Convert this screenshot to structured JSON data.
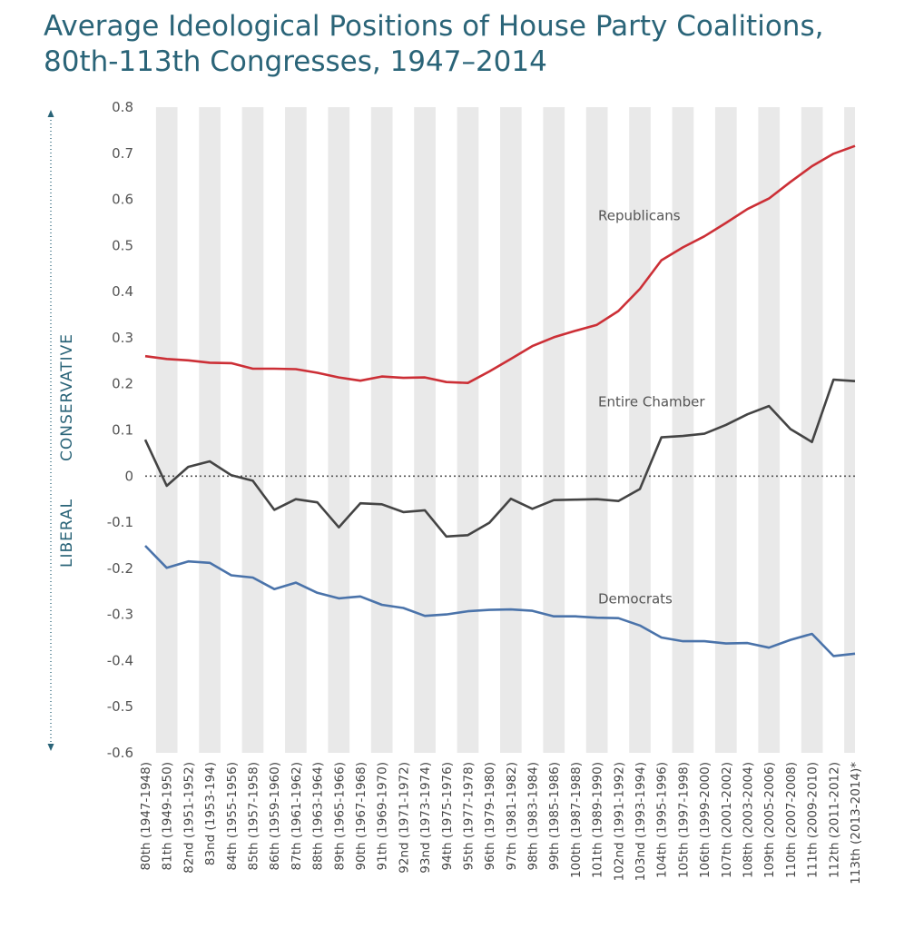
{
  "title": {
    "line1": "Average Ideological Positions of House Party Coalitions,",
    "line2": "80th-113th Congresses, 1947–2014"
  },
  "direction_labels": {
    "conservative": "CONSERVATIVE",
    "liberal": "LIBERAL"
  },
  "colors": {
    "republicans": "#cc2f36",
    "chamber": "#444444",
    "democrats": "#4a73aa",
    "title": "#2a6478",
    "band": "#e9e9e9"
  },
  "chart_data": {
    "type": "line",
    "title": "Average Ideological Positions of House Party Coalitions, 80th-113th Congresses, 1947–2014",
    "xlabel": "",
    "ylabel": "",
    "ylim": [
      -0.6,
      0.8
    ],
    "yticks": [
      "0.8",
      "0.7",
      "0.6",
      "0.5",
      "0.4",
      "0.3",
      "0.2",
      "0.1",
      "0",
      "-0.1",
      "-0.2",
      "-0.3",
      "-0.4",
      "-0.5",
      "-0.6"
    ],
    "grid": "alternating vertical bands, dotted zero line",
    "legend": "inline labels",
    "categories": [
      "80th (1947-1948)",
      "81th (1949-1950)",
      "82nd (1951-1952)",
      "83nd (1953-194)",
      "84th (1955-1956)",
      "85th (1957-1958)",
      "86th (1959-1960)",
      "87th (1961-1962)",
      "88th (1963-1964)",
      "89th (1965-1966)",
      "90th (1967-1968)",
      "91th (1969-1970)",
      "92nd (1971-1972)",
      "93nd (1973-1974)",
      "94th (1975-1976)",
      "95th (1977-1978)",
      "96th (1979-1980)",
      "97th (1981-1982)",
      "98th (1983-1984)",
      "99th (1985-1986)",
      "100th (1987-1988)",
      "101th (1989-1990)",
      "102nd (1991-1992)",
      "103nd (1993-1994)",
      "104th (1995-1996)",
      "105th (1997-1998)",
      "106th (1999-2000)",
      "107th (2001-2002)",
      "108th (2003-2004)",
      "109th (2005-2006)",
      "110th (2007-2008)",
      "111th (2009-2010)",
      "112th (2011-2012)",
      "113th (2013-2014)*"
    ],
    "series": [
      {
        "name": "Republicans",
        "key": "republicans",
        "values": [
          0.26,
          0.254,
          0.251,
          0.246,
          0.245,
          0.233,
          0.233,
          0.232,
          0.224,
          0.214,
          0.207,
          0.216,
          0.213,
          0.214,
          0.204,
          0.202,
          0.227,
          0.254,
          0.282,
          0.301,
          0.315,
          0.328,
          0.358,
          0.406,
          0.468,
          0.496,
          0.52,
          0.549,
          0.579,
          0.602,
          0.638,
          0.672,
          0.699,
          0.716
        ]
      },
      {
        "name": "Entire Chamber",
        "key": "chamber",
        "values": [
          0.079,
          -0.021,
          0.02,
          0.032,
          0.002,
          -0.01,
          -0.073,
          -0.05,
          -0.057,
          -0.111,
          -0.059,
          -0.061,
          -0.078,
          -0.074,
          -0.131,
          -0.128,
          -0.101,
          -0.049,
          -0.071,
          -0.052,
          -0.051,
          -0.05,
          -0.054,
          -0.028,
          0.084,
          0.087,
          0.092,
          0.111,
          0.134,
          0.152,
          0.102,
          0.074,
          0.209,
          0.206
        ]
      },
      {
        "name": "Democrats",
        "key": "democrats",
        "values": [
          -0.151,
          -0.199,
          -0.185,
          -0.188,
          -0.215,
          -0.22,
          -0.245,
          -0.231,
          -0.253,
          -0.265,
          -0.261,
          -0.279,
          -0.286,
          -0.303,
          -0.3,
          -0.293,
          -0.29,
          -0.289,
          -0.292,
          -0.304,
          -0.304,
          -0.307,
          -0.308,
          -0.324,
          -0.35,
          -0.358,
          -0.358,
          -0.363,
          -0.362,
          -0.372,
          -0.355,
          -0.342,
          -0.39,
          -0.385
        ]
      }
    ],
    "annotations": [
      "Republicans",
      "Entire Chamber",
      "Democrats"
    ]
  }
}
